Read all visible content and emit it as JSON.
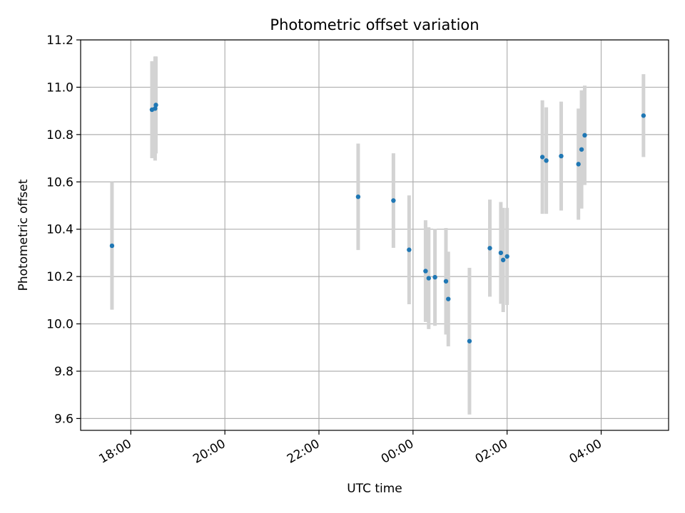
{
  "chart_data": {
    "type": "scatter",
    "title": "Photometric offset variation",
    "xlabel": "UTC time",
    "ylabel": "Photometric offset",
    "x_unit": "UTC time (HH:MM, spanning midnight)",
    "xlim": [
      "16:56",
      "05:26"
    ],
    "ylim": [
      9.55,
      11.2
    ],
    "x_ticks": [
      "18:00",
      "20:00",
      "22:00",
      "00:00",
      "02:00",
      "04:00"
    ],
    "y_ticks": [
      "9.6",
      "9.8",
      "10.0",
      "10.2",
      "10.4",
      "10.6",
      "10.8",
      "11.0",
      "11.2"
    ],
    "grid": true,
    "colors": {
      "points": "#1f77b4",
      "error_bars": "#d3d3d3",
      "grid": "#b0b0b0"
    },
    "series": [
      {
        "points": [
          {
            "x": "17:36",
            "y": 10.33,
            "err": 0.27
          },
          {
            "x": "18:27",
            "y": 10.905,
            "err": 0.205
          },
          {
            "x": "18:31",
            "y": 10.91,
            "err": 0.22
          },
          {
            "x": "18:32",
            "y": 10.925,
            "err": 0.205
          },
          {
            "x": "22:50",
            "y": 10.537,
            "err": 0.225
          },
          {
            "x": "23:35",
            "y": 10.521,
            "err": 0.2
          },
          {
            "x": "23:55",
            "y": 10.313,
            "err": 0.23
          },
          {
            "x": "00:16",
            "y": 10.223,
            "err": 0.215
          },
          {
            "x": "00:20",
            "y": 10.193,
            "err": 0.215
          },
          {
            "x": "00:28",
            "y": 10.197,
            "err": 0.205
          },
          {
            "x": "00:42",
            "y": 10.18,
            "err": 0.225
          },
          {
            "x": "00:45",
            "y": 10.105,
            "err": 0.2
          },
          {
            "x": "01:12",
            "y": 9.927,
            "err": 0.31
          },
          {
            "x": "01:38",
            "y": 10.32,
            "err": 0.205
          },
          {
            "x": "01:52",
            "y": 10.3,
            "err": 0.215
          },
          {
            "x": "01:55",
            "y": 10.27,
            "err": 0.22
          },
          {
            "x": "02:00",
            "y": 10.285,
            "err": 0.205
          },
          {
            "x": "02:45",
            "y": 10.705,
            "err": 0.24
          },
          {
            "x": "02:50",
            "y": 10.69,
            "err": 0.225
          },
          {
            "x": "03:09",
            "y": 10.709,
            "err": 0.23
          },
          {
            "x": "03:31",
            "y": 10.675,
            "err": 0.235
          },
          {
            "x": "03:35",
            "y": 10.737,
            "err": 0.25
          },
          {
            "x": "03:39",
            "y": 10.797,
            "err": 0.21
          },
          {
            "x": "04:54",
            "y": 10.88,
            "err": 0.175
          }
        ]
      }
    ]
  }
}
